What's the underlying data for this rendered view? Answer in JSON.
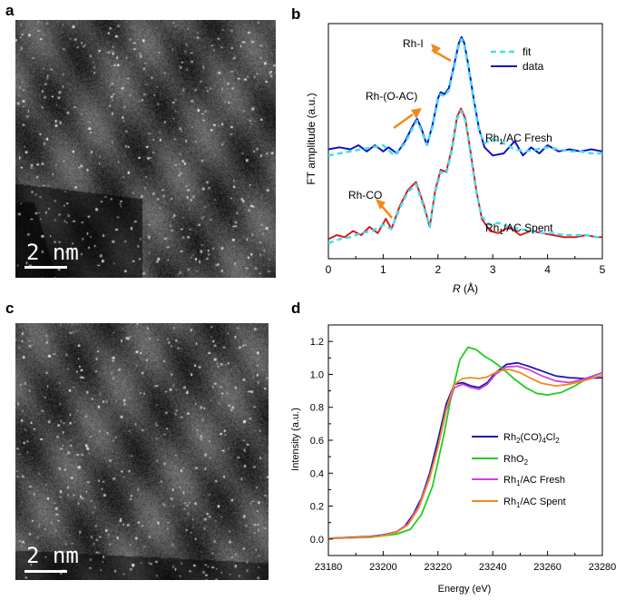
{
  "panels": {
    "a": {
      "letter": "a",
      "scale_text": "2 nm"
    },
    "b": {
      "letter": "b"
    },
    "c": {
      "letter": "c",
      "scale_text": "2 nm"
    },
    "d": {
      "letter": "d"
    }
  },
  "chart_data": [
    {
      "panel": "b",
      "type": "line",
      "xlabel_italic": "R",
      "xlabel_rest": " (Å)",
      "ylabel": "FT amplitude (a.u.)",
      "xlim": [
        0,
        5
      ],
      "xticks": [
        "0",
        "1",
        "2",
        "3",
        "4",
        "5"
      ],
      "legend": [
        {
          "name": "fit",
          "color": "#40e0f0",
          "dashed": true
        },
        {
          "name": "data",
          "color": "#1010c8",
          "dashed": false
        }
      ],
      "annotations": [
        {
          "text": "Rh-I"
        },
        {
          "text": "Rh-(O-AC)"
        },
        {
          "text": "Rh-CO"
        }
      ],
      "series_labels": [
        {
          "main": "Rh",
          "sub": "1",
          "rest": "/AC Fresh"
        },
        {
          "main": "Rh",
          "sub": "1",
          "rest": "/AC Spent"
        }
      ],
      "series": [
        {
          "name": "Rh1/AC Fresh data",
          "color": "#1010c8",
          "x": [
            0,
            0.2,
            0.4,
            0.55,
            0.7,
            0.85,
            1.0,
            1.1,
            1.25,
            1.4,
            1.55,
            1.62,
            1.7,
            1.8,
            1.9,
            2.0,
            2.05,
            2.12,
            2.2,
            2.3,
            2.38,
            2.43,
            2.48,
            2.55,
            2.65,
            2.75,
            2.85,
            3.0,
            3.2,
            3.4,
            3.55,
            3.7,
            3.85,
            4.0,
            4.2,
            4.4,
            4.6,
            4.8,
            5.0
          ],
          "y": [
            0.5,
            0.51,
            0.5,
            0.52,
            0.49,
            0.52,
            0.49,
            0.51,
            0.48,
            0.54,
            0.62,
            0.65,
            0.6,
            0.52,
            0.62,
            0.75,
            0.78,
            0.77,
            0.8,
            0.92,
            1.02,
            1.05,
            1.02,
            0.92,
            0.75,
            0.6,
            0.51,
            0.47,
            0.48,
            0.54,
            0.47,
            0.51,
            0.48,
            0.52,
            0.49,
            0.5,
            0.49,
            0.5,
            0.49
          ]
        },
        {
          "name": "Rh1/AC Fresh fit",
          "color": "#40e0f0",
          "dashed": true,
          "x": [
            0,
            0.2,
            0.4,
            0.6,
            0.8,
            1.0,
            1.2,
            1.4,
            1.55,
            1.62,
            1.7,
            1.8,
            1.9,
            2.0,
            2.05,
            2.12,
            2.2,
            2.3,
            2.38,
            2.43,
            2.48,
            2.55,
            2.65,
            2.75,
            2.85,
            3.0,
            3.2,
            3.4,
            3.6,
            3.8,
            4.0,
            4.2,
            4.4,
            4.6,
            4.8,
            5.0
          ],
          "y": [
            0.47,
            0.48,
            0.49,
            0.5,
            0.51,
            0.52,
            0.47,
            0.53,
            0.61,
            0.64,
            0.59,
            0.52,
            0.61,
            0.74,
            0.77,
            0.76,
            0.79,
            0.91,
            1.01,
            1.04,
            1.01,
            0.91,
            0.74,
            0.59,
            0.53,
            0.55,
            0.53,
            0.5,
            0.49,
            0.5,
            0.51,
            0.5,
            0.49,
            0.49,
            0.48,
            0.48
          ]
        },
        {
          "name": "Rh1/AC Spent data",
          "color": "#e01818",
          "x": [
            0,
            0.15,
            0.3,
            0.45,
            0.6,
            0.75,
            0.9,
            1.05,
            1.15,
            1.3,
            1.45,
            1.6,
            1.75,
            1.85,
            1.95,
            2.05,
            2.15,
            2.25,
            2.35,
            2.42,
            2.5,
            2.6,
            2.7,
            2.8,
            2.95,
            3.1,
            3.3,
            3.5,
            3.7,
            3.9,
            4.1,
            4.3,
            4.5,
            4.7,
            4.9,
            5.0
          ],
          "y": [
            0.06,
            0.08,
            0.07,
            0.1,
            0.08,
            0.12,
            0.09,
            0.16,
            0.11,
            0.22,
            0.3,
            0.34,
            0.22,
            0.12,
            0.3,
            0.4,
            0.39,
            0.5,
            0.66,
            0.7,
            0.65,
            0.48,
            0.3,
            0.16,
            0.1,
            0.09,
            0.12,
            0.08,
            0.1,
            0.09,
            0.08,
            0.07,
            0.07,
            0.08,
            0.07,
            0.07
          ]
        },
        {
          "name": "Rh1/AC Spent fit",
          "color": "#40e0f0",
          "dashed": true,
          "x": [
            0,
            0.2,
            0.4,
            0.6,
            0.8,
            1.0,
            1.15,
            1.3,
            1.45,
            1.6,
            1.75,
            1.85,
            1.95,
            2.05,
            2.15,
            2.25,
            2.35,
            2.42,
            2.5,
            2.6,
            2.7,
            2.8,
            2.95,
            3.1,
            3.3,
            3.5,
            3.7,
            3.9,
            4.1,
            4.3,
            4.5,
            4.7,
            4.9,
            5.0
          ],
          "y": [
            0.04,
            0.06,
            0.07,
            0.09,
            0.1,
            0.13,
            0.11,
            0.21,
            0.29,
            0.33,
            0.21,
            0.12,
            0.29,
            0.39,
            0.38,
            0.49,
            0.65,
            0.69,
            0.64,
            0.47,
            0.29,
            0.17,
            0.13,
            0.14,
            0.12,
            0.11,
            0.1,
            0.09,
            0.09,
            0.08,
            0.08,
            0.08,
            0.07,
            0.07
          ]
        }
      ]
    },
    {
      "panel": "d",
      "type": "line",
      "xlabel": "Energy (eV)",
      "ylabel": "Intensity (a.u.)",
      "xlim": [
        23180,
        23280
      ],
      "ylim": [
        -0.1,
        1.3
      ],
      "xticks": [
        "23180",
        "23200",
        "23220",
        "23240",
        "23260",
        "23280"
      ],
      "yticks": [
        "0.0",
        "0.2",
        "0.4",
        "0.6",
        "0.8",
        "1.0",
        "1.2"
      ],
      "legend": [
        {
          "main": "Rh",
          "sub": "2",
          "rest": "(CO)",
          "sub2": "4",
          "rest2": "Cl",
          "sub3": "2",
          "color": "#1a1ab0"
        },
        {
          "main": "RhO",
          "sub": "2",
          "color": "#22cc22"
        },
        {
          "main": "Rh",
          "sub": "1",
          "rest": "/AC Fresh",
          "color": "#d040e0"
        },
        {
          "main": "Rh",
          "sub": "1",
          "rest": "/AC Spent",
          "color": "#f08a1c"
        }
      ],
      "series": [
        {
          "name": "Rh2(CO)4Cl2",
          "color": "#1a1ab0",
          "x": [
            23180,
            23195,
            23200,
            23205,
            23208,
            23211,
            23214,
            23217,
            23220,
            23223,
            23226,
            23229,
            23232,
            23235,
            23238,
            23241,
            23245,
            23249,
            23253,
            23258,
            23263,
            23268,
            23273,
            23280
          ],
          "y": [
            0.005,
            0.015,
            0.025,
            0.045,
            0.08,
            0.15,
            0.25,
            0.4,
            0.6,
            0.82,
            0.94,
            0.95,
            0.93,
            0.92,
            0.95,
            1.01,
            1.06,
            1.07,
            1.05,
            1.02,
            0.99,
            0.98,
            0.975,
            0.98
          ]
        },
        {
          "name": "RhO2",
          "color": "#22cc22",
          "x": [
            23180,
            23195,
            23200,
            23205,
            23210,
            23214,
            23218,
            23222,
            23225,
            23228,
            23231,
            23234,
            23237,
            23240,
            23244,
            23248,
            23252,
            23256,
            23260,
            23265,
            23270,
            23275,
            23280
          ],
          "y": [
            0.005,
            0.01,
            0.02,
            0.03,
            0.06,
            0.15,
            0.32,
            0.62,
            0.88,
            1.09,
            1.165,
            1.15,
            1.11,
            1.08,
            1.03,
            0.97,
            0.92,
            0.885,
            0.875,
            0.89,
            0.93,
            0.98,
            1.01
          ]
        },
        {
          "name": "Rh1/AC Fresh",
          "color": "#d040e0",
          "x": [
            23180,
            23195,
            23200,
            23205,
            23209,
            23213,
            23217,
            23220,
            23223,
            23226,
            23229,
            23232,
            23235,
            23238,
            23241,
            23245,
            23249,
            23253,
            23258,
            23263,
            23268,
            23273,
            23280
          ],
          "y": [
            0.003,
            0.012,
            0.022,
            0.045,
            0.09,
            0.2,
            0.38,
            0.56,
            0.78,
            0.92,
            0.94,
            0.92,
            0.91,
            0.94,
            1.0,
            1.045,
            1.05,
            1.03,
            0.99,
            0.96,
            0.95,
            0.97,
            1.01
          ]
        },
        {
          "name": "Rh1/AC Spent",
          "color": "#f08a1c",
          "x": [
            23180,
            23195,
            23200,
            23205,
            23209,
            23213,
            23217,
            23220,
            23223,
            23226,
            23229,
            23232,
            23235,
            23238,
            23242,
            23246,
            23250,
            23254,
            23258,
            23263,
            23268,
            23273,
            23280
          ],
          "y": [
            0.004,
            0.012,
            0.022,
            0.042,
            0.085,
            0.19,
            0.37,
            0.56,
            0.79,
            0.94,
            0.975,
            0.98,
            0.975,
            0.985,
            1.02,
            1.03,
            1.01,
            0.975,
            0.945,
            0.93,
            0.94,
            0.96,
            0.995
          ]
        }
      ]
    }
  ]
}
